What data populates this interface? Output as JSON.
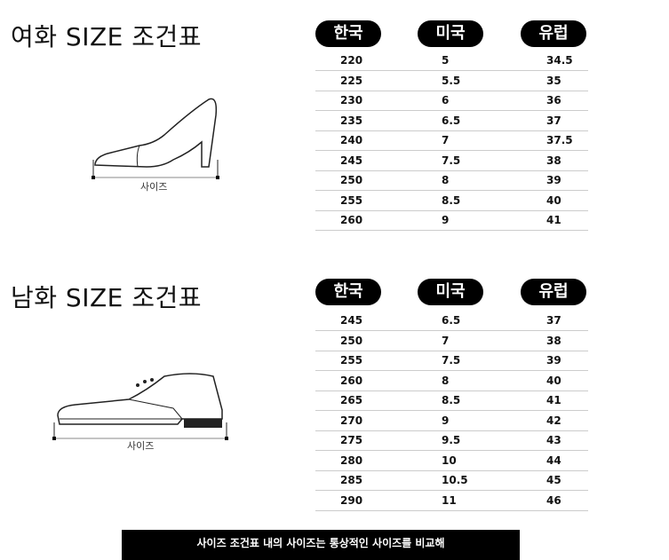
{
  "women": {
    "title": "여화 SIZE 조건표",
    "headers": [
      "한국",
      "미국",
      "유럽"
    ],
    "size_label": "사이즈",
    "rows": [
      [
        "220",
        "5",
        "34.5"
      ],
      [
        "225",
        "5.5",
        "35"
      ],
      [
        "230",
        "6",
        "36"
      ],
      [
        "235",
        "6.5",
        "37"
      ],
      [
        "240",
        "7",
        "37.5"
      ],
      [
        "245",
        "7.5",
        "38"
      ],
      [
        "250",
        "8",
        "39"
      ],
      [
        "255",
        "8.5",
        "40"
      ],
      [
        "260",
        "9",
        "41"
      ]
    ]
  },
  "men": {
    "title": "남화 SIZE 조건표",
    "headers": [
      "한국",
      "미국",
      "유럽"
    ],
    "size_label": "사이즈",
    "rows": [
      [
        "245",
        "6.5",
        "37"
      ],
      [
        "250",
        "7",
        "38"
      ],
      [
        "255",
        "7.5",
        "39"
      ],
      [
        "260",
        "8",
        "40"
      ],
      [
        "265",
        "8.5",
        "41"
      ],
      [
        "270",
        "9",
        "42"
      ],
      [
        "275",
        "9.5",
        "43"
      ],
      [
        "280",
        "10",
        "44"
      ],
      [
        "285",
        "10.5",
        "45"
      ],
      [
        "290",
        "11",
        "46"
      ]
    ]
  },
  "footer": {
    "text": "사이즈 조건표 내의 사이즈는 통상적인 사이즈를 비교해"
  }
}
